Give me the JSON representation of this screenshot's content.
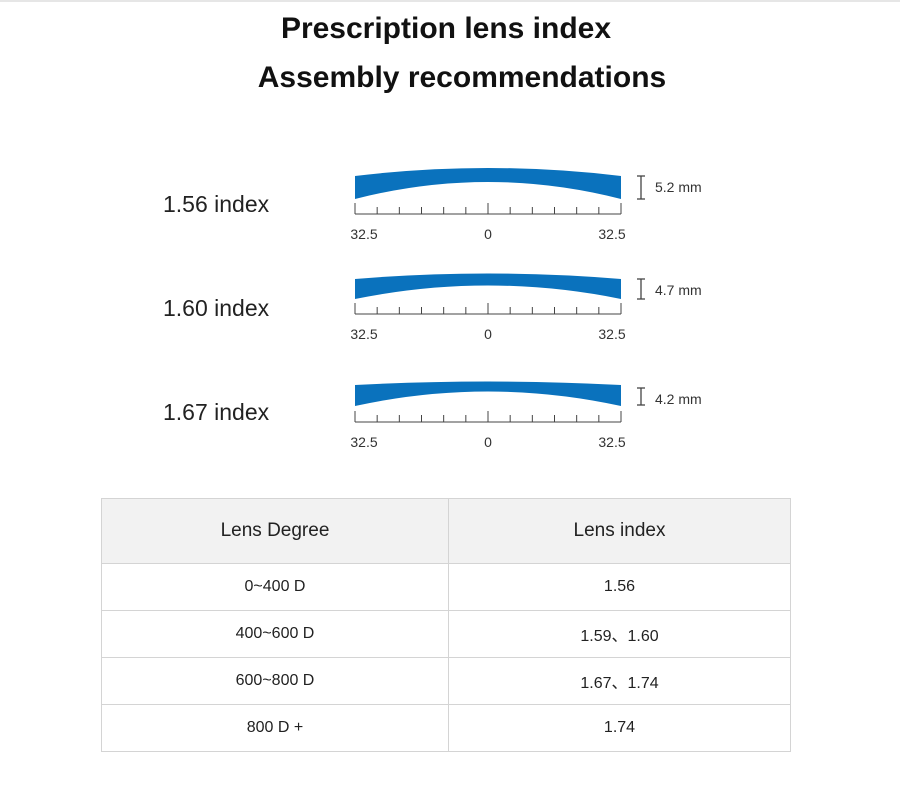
{
  "title": {
    "line1": "Prescription lens index",
    "line2": "Assembly recommendations"
  },
  "lenses": [
    {
      "label": "1.56  index",
      "thickness": "5.2 mm",
      "ticks": {
        "left": "32.5",
        "center": "0",
        "right": "32.5"
      }
    },
    {
      "label": "1.60  index",
      "thickness": "4.7 mm",
      "ticks": {
        "left": "32.5",
        "center": "0",
        "right": "32.5"
      }
    },
    {
      "label": "1.67  index",
      "thickness": "4.2 mm",
      "ticks": {
        "left": "32.5",
        "center": "0",
        "right": "32.5"
      }
    }
  ],
  "colors": {
    "lens": "#0a72bd",
    "ruler": "#444444"
  },
  "table": {
    "headers": [
      "Lens Degree",
      "Lens index"
    ],
    "rows": [
      [
        "0~400 D",
        "1.56"
      ],
      [
        "400~600 D",
        "1.59、1.60"
      ],
      [
        "600~800 D",
        "1.67、1.74"
      ],
      [
        "800  D +",
        "1.74"
      ]
    ]
  }
}
